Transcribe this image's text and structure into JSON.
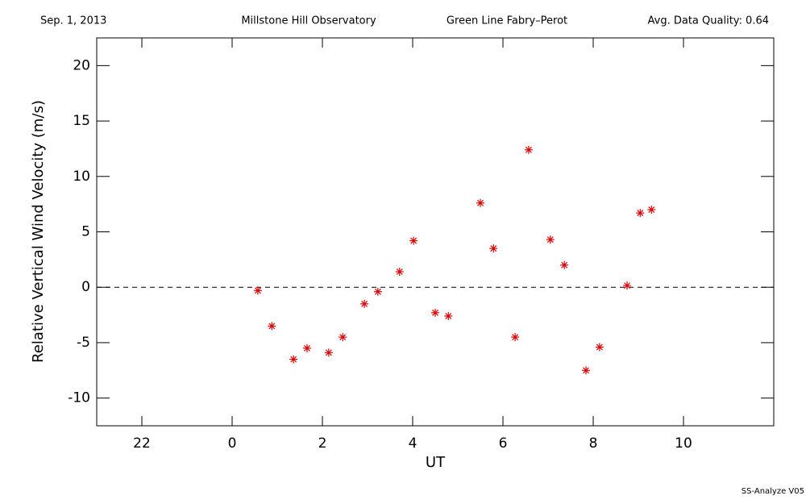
{
  "chart_data": {
    "type": "scatter",
    "header": [
      "Sep. 1, 2013",
      "Millstone Hill Observatory",
      "Green Line Fabry–Perot",
      "Avg. Data Quality: 0.64"
    ],
    "footer": "SS-Analyze V05",
    "x_label": "UT",
    "y_label": "Relative Vertical Wind Velocity (m/s)",
    "xlim": [
      -3,
      12
    ],
    "xticks": [
      {
        "value": -2,
        "label": "22"
      },
      0,
      2,
      4,
      6,
      8,
      10
    ],
    "ylim": [
      -12.5,
      22.5
    ],
    "yticks": [
      -10,
      -5,
      0,
      5,
      10,
      15,
      20
    ],
    "reference_line": 0,
    "series": [
      {
        "color": "#dd0000",
        "x": [
          0.57,
          0.88,
          1.36,
          1.66,
          2.14,
          2.45,
          2.93,
          3.23,
          3.71,
          4.02,
          4.5,
          4.79,
          5.5,
          5.79,
          6.27,
          6.57,
          7.05,
          7.36,
          7.84,
          8.14,
          8.75,
          9.04,
          9.29
        ],
        "values": [
          -0.3,
          -3.5,
          -6.5,
          -5.5,
          -5.9,
          -4.5,
          -1.5,
          -0.4,
          1.4,
          4.2,
          -2.3,
          -2.6,
          7.6,
          3.5,
          -4.5,
          12.4,
          4.3,
          2.0,
          -7.5,
          -5.4,
          0.15,
          6.7,
          7.0
        ]
      }
    ]
  }
}
